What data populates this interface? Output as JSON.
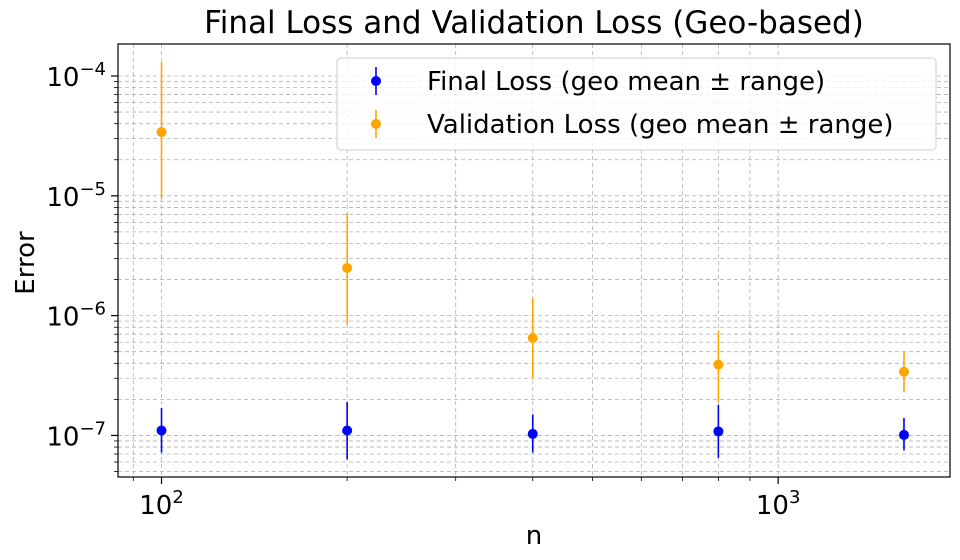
{
  "chart_data": {
    "type": "scatter",
    "title": "Final Loss and Validation Loss (Geo-based)",
    "xlabel": "n",
    "ylabel": "Error",
    "xscale": "log",
    "yscale": "log",
    "xlim": [
      85,
      1900
    ],
    "ylim": [
      4.5e-08,
      0.000185
    ],
    "x_ticks": [
      {
        "value": 100,
        "base": "10",
        "exp": "2"
      },
      {
        "value": 1000,
        "base": "10",
        "exp": "3"
      }
    ],
    "y_ticks": [
      {
        "value": 1e-07,
        "base": "10",
        "exp": "−7"
      },
      {
        "value": 1e-06,
        "base": "10",
        "exp": "−6"
      },
      {
        "value": 1e-05,
        "base": "10",
        "exp": "−5"
      },
      {
        "value": 0.0001,
        "base": "10",
        "exp": "−4"
      }
    ],
    "grid": "both-major-minor-dashed",
    "legend_position": "top-right",
    "series": [
      {
        "name": "Final Loss (geo mean ± range)",
        "color": "#0000ff",
        "points": [
          {
            "x": 100,
            "y": 1.1e-07,
            "low": 7.2e-08,
            "high": 1.7e-07
          },
          {
            "x": 200,
            "y": 1.1e-07,
            "low": 6.3e-08,
            "high": 1.9e-07
          },
          {
            "x": 400,
            "y": 1.03e-07,
            "low": 7.2e-08,
            "high": 1.5e-07
          },
          {
            "x": 800,
            "y": 1.08e-07,
            "low": 6.5e-08,
            "high": 1.8e-07
          },
          {
            "x": 1600,
            "y": 1.01e-07,
            "low": 7.5e-08,
            "high": 1.4e-07
          }
        ]
      },
      {
        "name": "Validation Loss (geo mean ± range)",
        "color": "#ffa500",
        "points": [
          {
            "x": 100,
            "y": 3.4e-05,
            "low": 9.5e-06,
            "high": 0.00013
          },
          {
            "x": 200,
            "y": 2.5e-06,
            "low": 8.5e-07,
            "high": 7.2e-06
          },
          {
            "x": 400,
            "y": 6.5e-07,
            "low": 3e-07,
            "high": 1.4e-06
          },
          {
            "x": 800,
            "y": 3.9e-07,
            "low": 1.9e-07,
            "high": 7.5e-07
          },
          {
            "x": 1600,
            "y": 3.4e-07,
            "low": 2.3e-07,
            "high": 5e-07
          }
        ]
      }
    ]
  }
}
